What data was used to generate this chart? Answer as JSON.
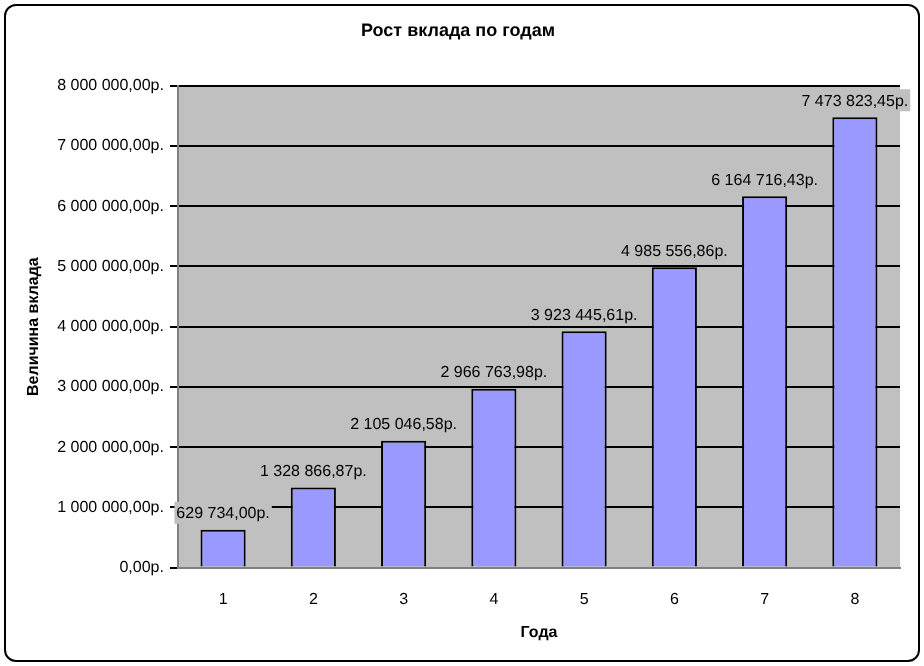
{
  "chart_data": {
    "type": "bar",
    "title": "Рост вклада по годам",
    "xlabel": "Года",
    "ylabel": "Величина вклада",
    "categories": [
      "1",
      "2",
      "3",
      "4",
      "5",
      "6",
      "7",
      "8"
    ],
    "values": [
      629734.0,
      1328866.87,
      2105046.58,
      2966763.98,
      3923445.61,
      4985556.86,
      6164716.43,
      7473823.45
    ],
    "value_labels": [
      "629 734,00р.",
      "1 328 866,87р.",
      "2 105 046,58р.",
      "2 966 763,98р.",
      "3 923 445,61р.",
      "4 985 556,86р.",
      "6 164 716,43р.",
      "7 473 823,45р."
    ],
    "color": "#9999ff",
    "ylim": [
      0,
      8000000
    ],
    "yticks": [
      {
        "value": 0,
        "label": "0,00р."
      },
      {
        "value": 1000000,
        "label": "1 000 000,00р."
      },
      {
        "value": 2000000,
        "label": "2 000 000,00р."
      },
      {
        "value": 3000000,
        "label": "3 000 000,00р."
      },
      {
        "value": 4000000,
        "label": "4 000 000,00р."
      },
      {
        "value": 5000000,
        "label": "5 000 000,00р."
      },
      {
        "value": 6000000,
        "label": "6 000 000,00р."
      },
      {
        "value": 7000000,
        "label": "7 000 000,00р."
      },
      {
        "value": 8000000,
        "label": "8 000 000,00р."
      }
    ],
    "grid": "y",
    "legend": false
  }
}
